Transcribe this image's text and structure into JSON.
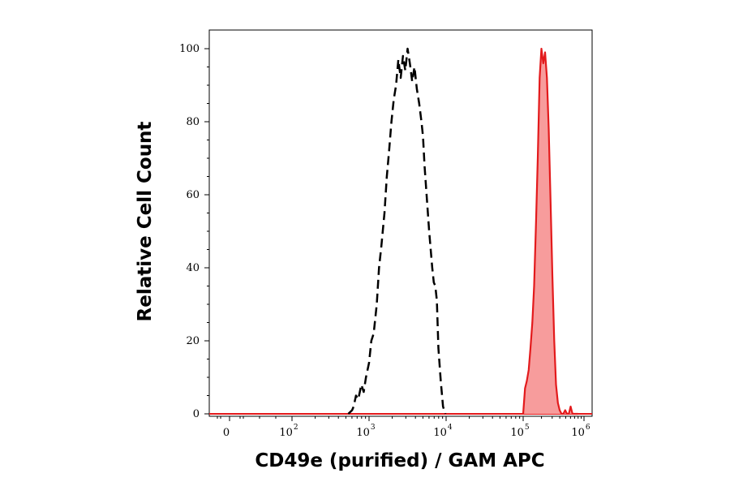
{
  "chart_data": {
    "type": "area",
    "xlabel": "CD49e (purified) / GAM APC",
    "ylabel": "Relative Cell Count",
    "x_scale": "biexponential",
    "ylim": [
      0,
      100
    ],
    "y_ticks": [
      0,
      20,
      40,
      60,
      80,
      100
    ],
    "x_ticks": [
      {
        "base": "0",
        "exp": ""
      },
      {
        "base": "10",
        "exp": "2"
      },
      {
        "base": "10",
        "exp": "3"
      },
      {
        "base": "10",
        "exp": "4"
      },
      {
        "base": "10",
        "exp": "5"
      },
      {
        "base": "10",
        "exp": "6"
      }
    ],
    "series": [
      {
        "style": "dashed",
        "color": "#000000",
        "filled": false,
        "log_x": [
          2.73,
          2.78,
          2.8,
          2.83,
          2.86,
          2.9,
          2.93,
          2.96,
          3.0,
          3.03,
          3.06,
          3.1,
          3.13,
          3.16,
          3.2,
          3.23,
          3.26,
          3.29,
          3.32,
          3.35,
          3.38,
          3.41,
          3.44,
          3.47,
          3.5,
          3.53,
          3.56,
          3.59,
          3.62,
          3.65,
          3.68,
          3.7,
          3.72,
          3.74,
          3.76,
          3.78,
          3.8,
          3.82,
          3.84,
          3.86,
          3.88,
          3.9,
          3.93,
          3.96,
          3.99
        ],
        "y": [
          0,
          1,
          2,
          5,
          4,
          8,
          6,
          10,
          14,
          20,
          22,
          30,
          40,
          46,
          55,
          65,
          72,
          80,
          86,
          90,
          97,
          92,
          98,
          94,
          100,
          96,
          91,
          95,
          89,
          85,
          80,
          76,
          68,
          62,
          56,
          50,
          45,
          40,
          36,
          35,
          31,
          18,
          9,
          2,
          0
        ]
      },
      {
        "style": "solid",
        "color": "#e31a1c",
        "fill": "#f79c9c",
        "filled": true,
        "log_x": [
          5.0,
          5.03,
          5.06,
          5.09,
          5.12,
          5.15,
          5.18,
          5.21,
          5.24,
          5.27,
          5.3,
          5.33,
          5.36,
          5.39,
          5.42,
          5.45,
          5.48,
          5.51,
          5.54,
          5.57,
          5.6,
          5.63,
          5.66,
          5.69,
          5.72,
          5.75,
          5.78,
          5.81,
          5.84,
          5.87,
          5.9
        ],
        "y": [
          0,
          7,
          9,
          12,
          18,
          25,
          35,
          52,
          70,
          92,
          100,
          96,
          99,
          92,
          78,
          58,
          38,
          20,
          8,
          3,
          1,
          0,
          0,
          1,
          0,
          0,
          2,
          0,
          0,
          0,
          0
        ]
      }
    ]
  }
}
